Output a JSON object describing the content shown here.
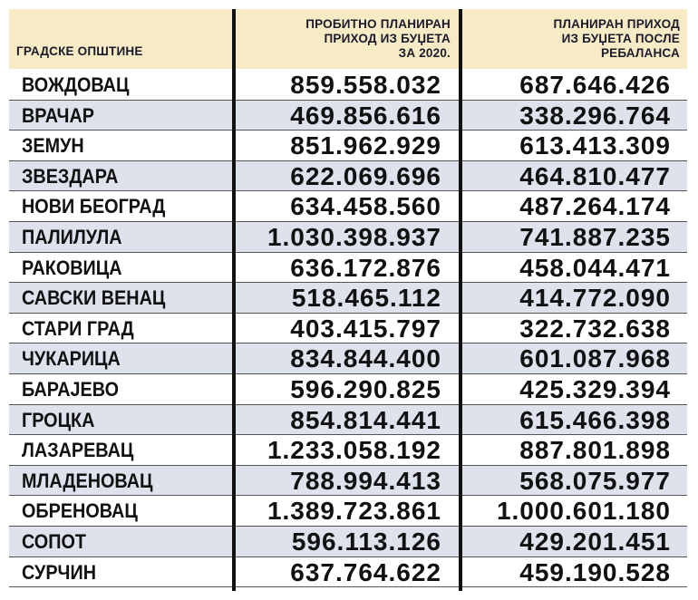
{
  "table": {
    "headers": [
      [
        "ГРАДСКЕ ОПШТИНЕ"
      ],
      [
        "ПРОБИТНО ПЛАНИРАН",
        "ПРИХОД ИЗ БУЏЕТА",
        "ЗА 2020."
      ],
      [
        "ПЛАНИРАН ПРИХОД",
        "ИЗ БУЏЕТА ПОСЛЕ",
        "РЕБАЛАНСА"
      ]
    ],
    "rows": [
      [
        "ВОЖДОВАЦ",
        "859.558.032",
        "687.646.426"
      ],
      [
        "ВРАЧАР",
        "469.856.616",
        "338.296.764"
      ],
      [
        "ЗЕМУН",
        "851.962.929",
        "613.413.309"
      ],
      [
        "ЗВЕЗДАРА",
        "622.069.696",
        "464.810.477"
      ],
      [
        "НОВИ БЕОГРАД",
        "634.458.560",
        "487.264.174"
      ],
      [
        "ПАЛИЛУЛА",
        "1.030.398.937",
        "741.887.235"
      ],
      [
        "РАКОВИЦА",
        "636.172.876",
        "458.044.471"
      ],
      [
        "САВСКИ ВЕНАЦ",
        "518.465.112",
        "414.772.090"
      ],
      [
        "СТАРИ ГРАД",
        "403.415.797",
        "322.732.638"
      ],
      [
        "ЧУКАРИЦА",
        "834.844.400",
        "601.087.968"
      ],
      [
        "БАРАЈЕВО",
        "596.290.825",
        "425.329.394"
      ],
      [
        "ГРОЦКА",
        "854.814.441",
        "615.466.398"
      ],
      [
        "ЛАЗАРЕВАЦ",
        "1.233.058.192",
        "887.801.898"
      ],
      [
        "МЛАДЕНОВАЦ",
        "788.994.413",
        "568.075.977"
      ],
      [
        "ОБРЕНОВАЦ",
        "1.389.723.861",
        "1.000.601.180"
      ],
      [
        "СОПОТ",
        "596.113.126",
        "429.201.451"
      ],
      [
        "СУРЧИН",
        "637.764.622",
        "459.190.528"
      ]
    ]
  }
}
